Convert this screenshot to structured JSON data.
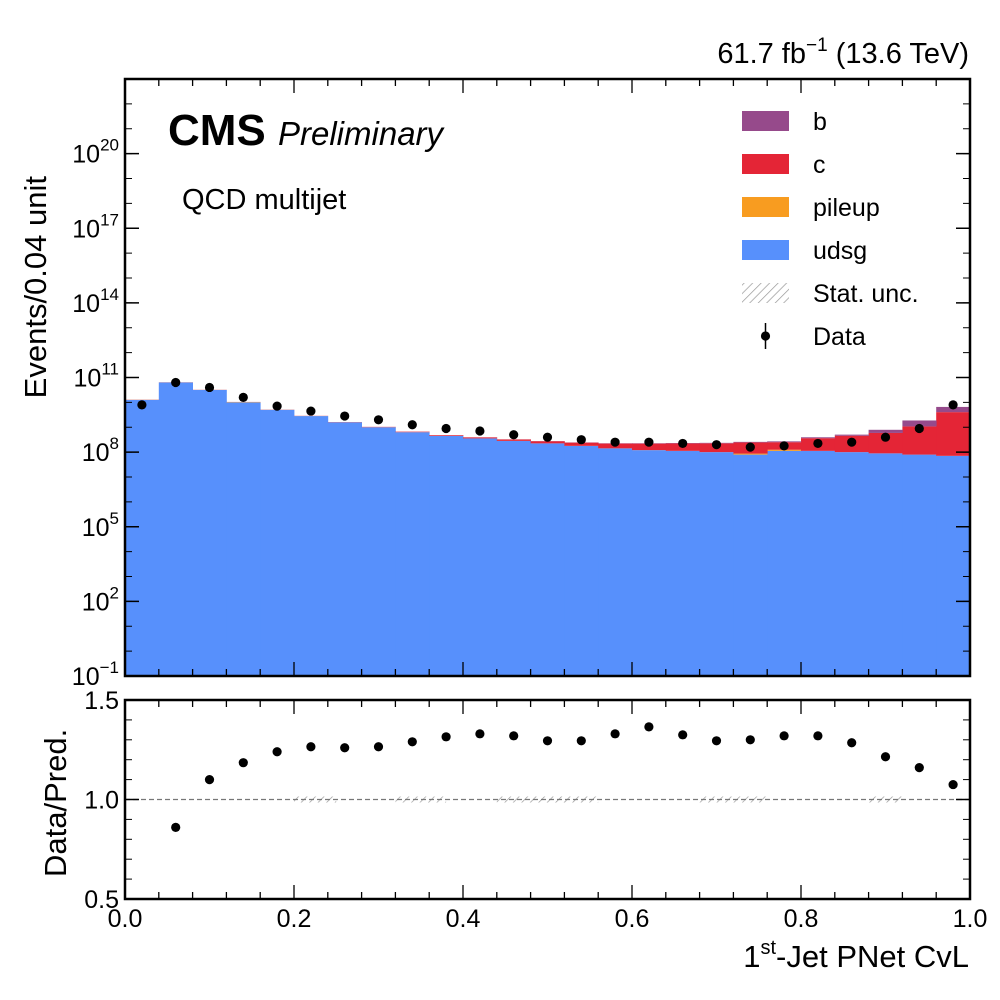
{
  "header": {
    "lumi_prefix": "61.7 fb",
    "lumi_exp": "−1",
    "lumi_suffix": " (13.6 TeV)",
    "cms_label": "CMS",
    "preliminary_label": "Preliminary",
    "process_label": "QCD multijet"
  },
  "axes": {
    "main_ylabel": "Events/0.04 unit",
    "ratio_ylabel": "Data/Pred.",
    "xlabel_prefix": "1",
    "xlabel_sup": "st",
    "xlabel_suffix": "-Jet PNet CvL",
    "main_yticks": [
      {
        "value": -1,
        "base": "10",
        "exp": "−1"
      },
      {
        "value": 2,
        "base": "10",
        "exp": "2"
      },
      {
        "value": 5,
        "base": "10",
        "exp": "5"
      },
      {
        "value": 8,
        "base": "10",
        "exp": "8"
      },
      {
        "value": 11,
        "base": "10",
        "exp": "11"
      },
      {
        "value": 14,
        "base": "10",
        "exp": "14"
      },
      {
        "value": 17,
        "base": "10",
        "exp": "17"
      },
      {
        "value": 20,
        "base": "10",
        "exp": "20"
      }
    ],
    "ratio_yticks": [
      {
        "value": 0.5,
        "label": "0.5"
      },
      {
        "value": 1.0,
        "label": "1.0"
      },
      {
        "value": 1.5,
        "label": "1.5"
      }
    ],
    "xticks": [
      {
        "value": 0.0,
        "label": "0.0"
      },
      {
        "value": 0.2,
        "label": "0.2"
      },
      {
        "value": 0.4,
        "label": "0.4"
      },
      {
        "value": 0.6,
        "label": "0.6"
      },
      {
        "value": 0.8,
        "label": "0.8"
      },
      {
        "value": 1.0,
        "label": "1.0"
      }
    ]
  },
  "legend": {
    "placement": "top-right",
    "items": [
      {
        "key": "b",
        "label": "b",
        "kind": "fill",
        "color": "#964a8b"
      },
      {
        "key": "c",
        "label": "c",
        "kind": "fill",
        "color": "#e42536"
      },
      {
        "key": "pileup",
        "label": "pileup",
        "kind": "fill",
        "color": "#f89c20"
      },
      {
        "key": "udsg",
        "label": "udsg",
        "kind": "fill",
        "color": "#5790fc"
      },
      {
        "key": "stat_unc",
        "label": "Stat. unc.",
        "kind": "hatch",
        "color": "#9a9a9a"
      },
      {
        "key": "data",
        "label": "Data",
        "kind": "marker",
        "color": "#000000"
      }
    ]
  },
  "chart_data": {
    "type": "bar",
    "stacked": true,
    "log_y": true,
    "xlim": [
      0.0,
      1.0
    ],
    "ylim_log10": [
      -1,
      23
    ],
    "ratio_ylim": [
      0.5,
      1.5
    ],
    "bin_width": 0.04,
    "bin_edges": [
      0.0,
      0.04,
      0.08,
      0.12,
      0.16,
      0.2,
      0.24,
      0.28,
      0.32,
      0.36,
      0.4,
      0.44,
      0.48,
      0.52,
      0.56,
      0.6,
      0.64,
      0.68,
      0.72,
      0.76,
      0.8,
      0.84,
      0.88,
      0.92,
      0.96,
      1.0
    ],
    "series": [
      {
        "name": "udsg",
        "color": "#5790fc",
        "log10_values": [
          10.1,
          10.8,
          10.5,
          10.0,
          9.7,
          9.45,
          9.2,
          9.0,
          8.8,
          8.65,
          8.55,
          8.45,
          8.35,
          8.25,
          8.15,
          8.08,
          8.05,
          8.0,
          7.9,
          8.05,
          8.05,
          8.0,
          7.95,
          7.9,
          7.85
        ]
      },
      {
        "name": "pileup",
        "color": "#f89c20",
        "log10_values": [
          8.2,
          8.7,
          8.3,
          8.5,
          7.6,
          7.2,
          6.9,
          6.7,
          6.5,
          6.3,
          6.2,
          6.1,
          6.0,
          5.9,
          5.8,
          5.7,
          5.6,
          5.5,
          6.9,
          7.1,
          5.3,
          5.2,
          5.1,
          5.0,
          5.0
        ]
      },
      {
        "name": "c",
        "color": "#e42536",
        "log10_values": [
          8.2,
          8.8,
          8.5,
          8.0,
          7.8,
          7.6,
          7.5,
          7.5,
          7.5,
          7.5,
          7.55,
          7.6,
          7.7,
          7.8,
          7.9,
          8.0,
          8.05,
          8.1,
          8.2,
          8.1,
          8.4,
          8.55,
          8.7,
          9.0,
          9.6
        ]
      },
      {
        "name": "b",
        "color": "#964a8b",
        "log10_values": [
          7.0,
          7.5,
          7.2,
          6.9,
          6.7,
          6.5,
          6.4,
          6.3,
          6.3,
          6.3,
          6.3,
          6.4,
          6.5,
          6.6,
          6.7,
          6.8,
          6.9,
          7.0,
          7.1,
          7.3,
          7.5,
          7.7,
          8.3,
          8.9,
          9.4
        ]
      }
    ],
    "data": {
      "name": "Data",
      "x": [
        0.02,
        0.06,
        0.1,
        0.14,
        0.18,
        0.22,
        0.26,
        0.3,
        0.34,
        0.38,
        0.42,
        0.46,
        0.5,
        0.54,
        0.58,
        0.62,
        0.66,
        0.7,
        0.74,
        0.78,
        0.82,
        0.86,
        0.9,
        0.94,
        0.98
      ],
      "log10_values": [
        9.9,
        10.8,
        10.6,
        10.2,
        9.85,
        9.65,
        9.45,
        9.3,
        9.1,
        8.95,
        8.85,
        8.7,
        8.6,
        8.5,
        8.4,
        8.4,
        8.35,
        8.3,
        8.2,
        8.25,
        8.35,
        8.4,
        8.6,
        8.95,
        9.9
      ]
    },
    "ratio": {
      "x": [
        0.06,
        0.1,
        0.14,
        0.18,
        0.22,
        0.26,
        0.3,
        0.34,
        0.38,
        0.42,
        0.46,
        0.5,
        0.54,
        0.58,
        0.62,
        0.66,
        0.7,
        0.74,
        0.78,
        0.82,
        0.86,
        0.9,
        0.94,
        0.98
      ],
      "values": [
        0.86,
        1.1,
        1.185,
        1.24,
        1.265,
        1.26,
        1.265,
        1.29,
        1.315,
        1.33,
        1.32,
        1.295,
        1.295,
        1.33,
        1.365,
        1.325,
        1.295,
        1.3,
        1.32,
        1.32,
        1.285,
        1.215,
        1.16,
        1.075
      ]
    },
    "stat_unc_regions": [
      [
        0.2,
        0.25
      ],
      [
        0.32,
        0.38
      ],
      [
        0.44,
        0.56
      ],
      [
        0.68,
        0.76
      ],
      [
        0.88,
        0.92
      ]
    ]
  }
}
